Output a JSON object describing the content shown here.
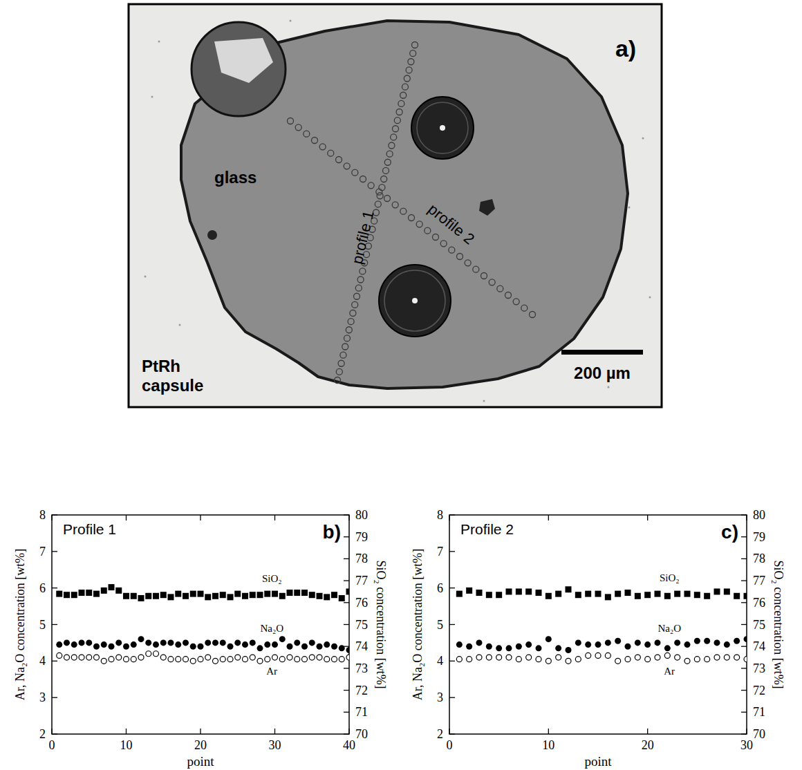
{
  "micrograph": {
    "panel_label": "a)",
    "material_label": "glass",
    "capsule_label": "PtRh capsule",
    "scale_bar": "200 µm",
    "profile_labels": [
      "profile 1",
      "profile 2"
    ]
  },
  "chart_data": [
    {
      "type": "scatter",
      "title": "Profile 1",
      "panel_label": "b)",
      "x_label": "point",
      "y_label": "Ar, Na₂O concentration [wt%]",
      "y2_label": "SiO₂ concentration [wt%]",
      "xlim": [
        0,
        40
      ],
      "xticks": [
        0,
        10,
        20,
        30,
        40
      ],
      "ylim": [
        2,
        8
      ],
      "yticks": [
        2,
        3,
        4,
        5,
        6,
        7,
        8
      ],
      "y2lim": [
        70,
        80
      ],
      "y2ticks": [
        70,
        71,
        72,
        73,
        74,
        75,
        76,
        77,
        78,
        79,
        80
      ],
      "x": [
        1,
        2,
        3,
        4,
        5,
        6,
        7,
        8,
        9,
        10,
        11,
        12,
        13,
        14,
        15,
        16,
        17,
        18,
        19,
        20,
        21,
        22,
        23,
        24,
        25,
        26,
        27,
        28,
        29,
        30,
        31,
        32,
        33,
        34,
        35,
        36,
        37,
        38,
        39,
        40
      ],
      "series": [
        {
          "name": "SiO₂",
          "axis": "y2",
          "color": "#000000",
          "marker": "square",
          "values": [
            76.4,
            76.35,
            76.35,
            76.45,
            76.45,
            76.4,
            76.55,
            76.7,
            76.55,
            76.3,
            76.3,
            76.2,
            76.3,
            76.3,
            76.35,
            76.25,
            76.4,
            76.3,
            76.4,
            76.4,
            76.25,
            76.3,
            76.35,
            76.25,
            76.4,
            76.3,
            76.35,
            76.35,
            76.4,
            76.4,
            76.3,
            76.45,
            76.45,
            76.45,
            76.35,
            76.3,
            76.25,
            76.35,
            76.2,
            76.5
          ]
        },
        {
          "name": "Na₂O",
          "color": "#000000",
          "marker": "circle",
          "values": [
            4.45,
            4.5,
            4.45,
            4.5,
            4.5,
            4.4,
            4.45,
            4.4,
            4.5,
            4.4,
            4.45,
            4.6,
            4.5,
            4.45,
            4.5,
            4.5,
            4.45,
            4.5,
            4.4,
            4.4,
            4.5,
            4.5,
            4.5,
            4.4,
            4.5,
            4.45,
            4.5,
            4.35,
            4.45,
            4.45,
            4.6,
            4.4,
            4.5,
            4.4,
            4.5,
            4.4,
            4.45,
            4.4,
            4.35,
            4.3
          ]
        },
        {
          "name": "Ar",
          "color": "#000000",
          "marker": "circle-open",
          "values": [
            4.15,
            4.1,
            4.1,
            4.1,
            4.1,
            4.1,
            4.0,
            4.05,
            4.1,
            4.05,
            4.05,
            4.1,
            4.2,
            4.2,
            4.1,
            4.05,
            4.05,
            4.05,
            4.0,
            4.05,
            4.1,
            4.0,
            4.05,
            4.05,
            4.1,
            4.05,
            4.1,
            4.0,
            4.05,
            4.1,
            4.05,
            4.1,
            4.05,
            4.05,
            4.1,
            4.1,
            4.05,
            4.05,
            4.05,
            4.1
          ]
        }
      ]
    },
    {
      "type": "scatter",
      "title": "Profile 2",
      "panel_label": "c)",
      "x_label": "point",
      "y_label": "Ar, Na₂O concentration [wt%]",
      "y2_label": "SiO₂ concentration [wt%]",
      "xlim": [
        0,
        30
      ],
      "xticks": [
        0,
        10,
        20,
        30
      ],
      "ylim": [
        2,
        8
      ],
      "yticks": [
        2,
        3,
        4,
        5,
        6,
        7,
        8
      ],
      "y2lim": [
        70,
        80
      ],
      "y2ticks": [
        70,
        71,
        72,
        73,
        74,
        75,
        76,
        77,
        78,
        79,
        80
      ],
      "x": [
        1,
        2,
        3,
        4,
        5,
        6,
        7,
        8,
        9,
        10,
        11,
        12,
        13,
        14,
        15,
        16,
        17,
        18,
        19,
        20,
        21,
        22,
        23,
        24,
        25,
        26,
        27,
        28,
        29,
        30
      ],
      "series": [
        {
          "name": "SiO₂",
          "axis": "y2",
          "color": "#000000",
          "marker": "square",
          "values": [
            76.4,
            76.55,
            76.45,
            76.35,
            76.35,
            76.5,
            76.5,
            76.5,
            76.45,
            76.3,
            76.4,
            76.6,
            76.35,
            76.4,
            76.4,
            76.25,
            76.4,
            76.45,
            76.3,
            76.35,
            76.4,
            76.3,
            76.4,
            76.4,
            76.35,
            76.3,
            76.5,
            76.5,
            76.3,
            76.3
          ]
        },
        {
          "name": "Na₂O",
          "color": "#000000",
          "marker": "circle",
          "values": [
            4.45,
            4.4,
            4.5,
            4.4,
            4.35,
            4.35,
            4.4,
            4.45,
            4.35,
            4.6,
            4.35,
            4.3,
            4.5,
            4.45,
            4.45,
            4.5,
            4.55,
            4.4,
            4.5,
            4.45,
            4.5,
            4.35,
            4.5,
            4.45,
            4.55,
            4.55,
            4.5,
            4.45,
            4.55,
            4.6
          ]
        },
        {
          "name": "Ar",
          "color": "#000000",
          "marker": "circle-open",
          "values": [
            4.05,
            4.05,
            4.1,
            4.1,
            4.1,
            4.1,
            4.05,
            4.1,
            4.05,
            4.0,
            4.1,
            4.0,
            4.05,
            4.15,
            4.15,
            4.15,
            4.0,
            4.05,
            4.1,
            4.05,
            4.1,
            4.15,
            4.1,
            4.0,
            4.05,
            4.05,
            4.1,
            4.1,
            4.1,
            4.05
          ]
        }
      ]
    }
  ]
}
